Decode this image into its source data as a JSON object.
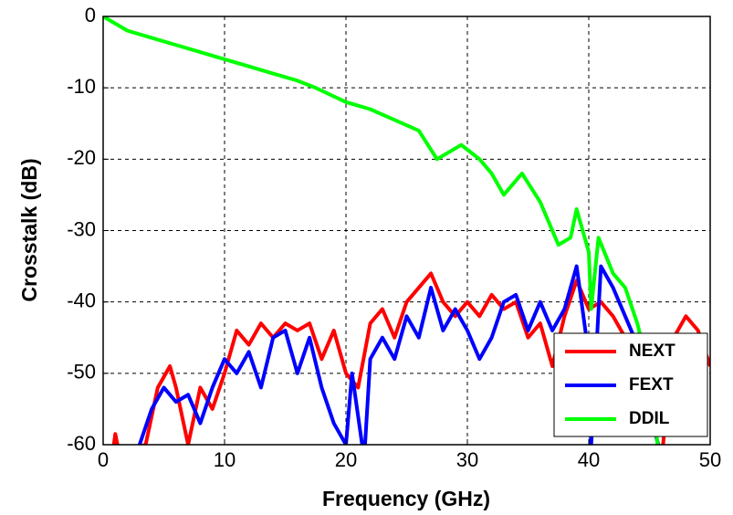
{
  "chart_data": {
    "type": "line",
    "xlabel": "Frequency (GHz)",
    "ylabel": "Crosstalk (dB)",
    "xlim": [
      0,
      50
    ],
    "xticks": [
      0,
      10,
      20,
      30,
      40,
      50
    ],
    "ylim": [
      -60,
      0
    ],
    "yticks": [
      -60,
      -50,
      -40,
      -30,
      -20,
      -10,
      0
    ],
    "grid": true,
    "legend": "lower right",
    "series": [
      {
        "name": "NEXT",
        "color": "#ff0000",
        "x": [
          0.8,
          1,
          1.3,
          3.5,
          4.5,
          5.5,
          6,
          7,
          8,
          9,
          10,
          11,
          12,
          13,
          14,
          15,
          16,
          17,
          18,
          19,
          20,
          21,
          22,
          23,
          24,
          25,
          26,
          27,
          28,
          29,
          30,
          31,
          32,
          33,
          34,
          35,
          36,
          37,
          38,
          39,
          40,
          41,
          42,
          43,
          44,
          45,
          46,
          47,
          48,
          49,
          50
        ],
        "values": [
          -61,
          -58.5,
          -61,
          -60,
          -52,
          -49,
          -52,
          -60,
          -52,
          -55,
          -50,
          -44,
          -46,
          -43,
          -45,
          -43,
          -44,
          -43,
          -48,
          -44,
          -50,
          -52,
          -43,
          -41,
          -45,
          -40,
          -38,
          -36,
          -40,
          -42,
          -40,
          -42,
          -39,
          -41,
          -40,
          -45,
          -43,
          -49,
          -42,
          -37,
          -41,
          -40,
          -42,
          -45,
          -48,
          -55,
          -62,
          -45,
          -42,
          -44,
          -49
        ]
      },
      {
        "name": "FEXT",
        "color": "#0000ff",
        "x": [
          3,
          4,
          5,
          6,
          7,
          8,
          9,
          10,
          11,
          12,
          13,
          14,
          15,
          16,
          17,
          18,
          19,
          20,
          20.5,
          21.5,
          22,
          23,
          24,
          25,
          26,
          27,
          28,
          29,
          30,
          31,
          32,
          33,
          34,
          35,
          36,
          37,
          38,
          39,
          39.8,
          40.2,
          41,
          42,
          43,
          44,
          45,
          46
        ],
        "values": [
          -60,
          -55,
          -52,
          -54,
          -53,
          -57,
          -52,
          -48,
          -50,
          -47,
          -52,
          -45,
          -44,
          -50,
          -45,
          -52,
          -57,
          -60,
          -50,
          -62,
          -48,
          -45,
          -48,
          -42,
          -45,
          -38,
          -44,
          -41,
          -44,
          -48,
          -45,
          -40,
          -39,
          -44,
          -40,
          -44,
          -41,
          -35,
          -45,
          -60,
          -35,
          -38,
          -42,
          -46,
          -55,
          -62
        ]
      },
      {
        "name": "DDIL",
        "color": "#00ff00",
        "x": [
          0,
          2,
          4,
          6,
          8,
          10,
          12,
          14,
          16,
          17.5,
          20,
          22,
          24,
          26,
          27.5,
          29.5,
          31,
          32,
          33,
          34.5,
          36,
          37.5,
          38.5,
          39,
          40,
          40.2,
          40.8,
          42,
          43,
          44,
          45,
          46
        ],
        "values": [
          0,
          -2,
          -3,
          -4,
          -5,
          -6,
          -7,
          -8,
          -9,
          -10,
          -12,
          -13,
          -14.5,
          -16,
          -20,
          -18,
          -20,
          -22,
          -25,
          -22,
          -26,
          -32,
          -31,
          -27,
          -33,
          -41,
          -31,
          -36,
          -38,
          -43,
          -50,
          -65
        ]
      }
    ]
  }
}
